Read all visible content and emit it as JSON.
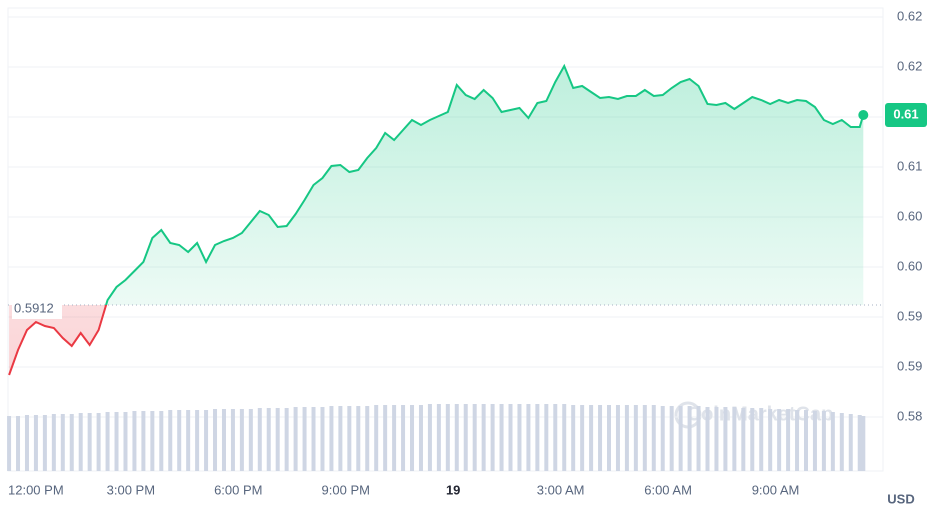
{
  "chart_data": {
    "type": "line",
    "x": [
      -0.4,
      -0.15,
      0.1,
      0.35,
      0.6,
      0.85,
      1.1,
      1.35,
      1.6,
      1.85,
      2.1,
      2.35,
      2.6,
      2.85,
      3.1,
      3.35,
      3.6,
      3.85,
      4.1,
      4.35,
      4.6,
      4.85,
      5.1,
      5.35,
      5.6,
      5.85,
      6.1,
      6.35,
      6.6,
      6.85,
      7.1,
      7.35,
      7.6,
      7.85,
      8.1,
      8.35,
      8.6,
      8.85,
      9.1,
      9.35,
      9.6,
      9.85,
      10.1,
      10.35,
      10.6,
      10.85,
      11.1,
      11.35,
      11.6,
      11.85,
      12.1,
      12.35,
      12.6,
      12.85,
      13.1,
      13.35,
      13.6,
      13.85,
      14.1,
      14.35,
      14.6,
      14.85,
      15.1,
      15.35,
      15.6,
      15.85,
      16.1,
      16.35,
      16.6,
      16.85,
      17.1,
      17.35,
      17.6,
      17.85,
      18.1,
      18.35,
      18.6,
      18.85,
      19.1,
      19.35,
      19.6,
      19.85,
      20.1,
      20.35,
      20.6,
      20.85,
      21.1,
      21.35,
      21.6,
      21.85,
      22.1,
      22.35,
      22.6,
      22.85,
      23.1,
      23.35,
      23.45
    ],
    "values": [
      0.5842,
      0.5867,
      0.5887,
      0.5895,
      0.5891,
      0.5889,
      0.5879,
      0.5871,
      0.5884,
      0.5872,
      0.5887,
      0.5917,
      0.593,
      0.5937,
      0.5946,
      0.5955,
      0.5979,
      0.5987,
      0.5974,
      0.5972,
      0.5965,
      0.5974,
      0.5955,
      0.5972,
      0.5976,
      0.5979,
      0.5984,
      0.5995,
      0.6006,
      0.6002,
      0.599,
      0.5991,
      0.6003,
      0.6017,
      0.6032,
      0.6039,
      0.6051,
      0.6052,
      0.6045,
      0.6047,
      0.6059,
      0.6069,
      0.6084,
      0.6077,
      0.6087,
      0.6097,
      0.6092,
      0.6097,
      0.6101,
      0.6105,
      0.6132,
      0.6122,
      0.6118,
      0.6127,
      0.6119,
      0.6105,
      0.6107,
      0.6109,
      0.6099,
      0.6114,
      0.6116,
      0.6135,
      0.6151,
      0.6129,
      0.6131,
      0.6125,
      0.6119,
      0.612,
      0.6118,
      0.6121,
      0.6121,
      0.6127,
      0.6121,
      0.6122,
      0.6129,
      0.6135,
      0.6138,
      0.6131,
      0.6113,
      0.6112,
      0.6114,
      0.6108,
      0.6114,
      0.612,
      0.6117,
      0.6113,
      0.6117,
      0.6114,
      0.6117,
      0.6116,
      0.611,
      0.6097,
      0.6093,
      0.6097,
      0.609,
      0.609,
      0.6102
    ],
    "volume": [
      55,
      55,
      56,
      56,
      56,
      57,
      57,
      57,
      58,
      58,
      58,
      59,
      59,
      59,
      60,
      60,
      60,
      60,
      61,
      61,
      61,
      61,
      61,
      62,
      62,
      62,
      62,
      62,
      63,
      63,
      63,
      63,
      64,
      64,
      64,
      64,
      65,
      65,
      65,
      65,
      65,
      66,
      66,
      66,
      66,
      66,
      66,
      67,
      67,
      67,
      67,
      67,
      67,
      67,
      67,
      67,
      67,
      67,
      67,
      67,
      67,
      67,
      67,
      66,
      66,
      66,
      66,
      66,
      66,
      66,
      66,
      66,
      66,
      65,
      65,
      65,
      65,
      65,
      64,
      64,
      64,
      64,
      63,
      63,
      63,
      62,
      62,
      62,
      61,
      61,
      60,
      60,
      59,
      58,
      57,
      56,
      55
    ],
    "volume_lim": [
      0,
      100
    ],
    "color": "#16c784",
    "down_color": "#ea3943",
    "volume_color": "#cfd6e4",
    "reference": 0.5912,
    "current_label": "0.61",
    "xlim": [
      -0.43,
      24
    ],
    "xticks": [
      {
        "value": 0,
        "label": "12:00 PM"
      },
      {
        "value": 3,
        "label": "3:00 PM"
      },
      {
        "value": 6,
        "label": "6:00 PM"
      },
      {
        "value": 9,
        "label": "9:00 PM"
      },
      {
        "value": 12,
        "label": "19"
      },
      {
        "value": 15,
        "label": "3:00 AM"
      },
      {
        "value": 18,
        "label": "6:00 AM"
      },
      {
        "value": 21,
        "label": "9:00 AM"
      }
    ],
    "ylim": [
      0.5746,
      0.6209
    ],
    "yticks": [
      {
        "value": 0.58,
        "label": "0.58"
      },
      {
        "value": 0.585,
        "label": "0.59"
      },
      {
        "value": 0.59,
        "label": "0.59"
      },
      {
        "value": 0.595,
        "label": "0.60"
      },
      {
        "value": 0.6,
        "label": "0.60"
      },
      {
        "value": 0.605,
        "label": "0.61"
      },
      {
        "value": 0.61,
        "label": "0.61"
      },
      {
        "value": 0.615,
        "label": "0.62"
      },
      {
        "value": 0.62,
        "label": "0.62"
      }
    ],
    "grid": true,
    "currency": "USD",
    "watermark": "CoinMarketCap"
  }
}
